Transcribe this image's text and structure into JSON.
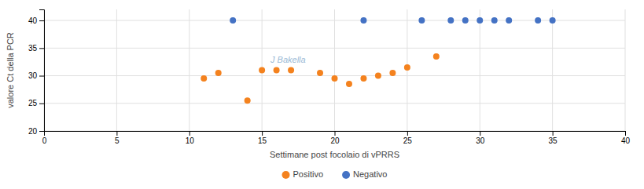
{
  "chart_data": {
    "type": "scatter",
    "xlabel": "Settimane post focolaio di vPRRS",
    "ylabel": "valore Ct della PCR",
    "annotations": [
      {
        "text": "J Bakella"
      }
    ],
    "series": [
      {
        "name": "Positivo",
        "color": "#f4821e",
        "x": [
          11,
          12,
          14,
          15,
          16,
          17,
          19,
          20,
          21,
          22,
          23,
          24,
          25,
          27
        ],
        "values": [
          29.5,
          30.5,
          25.5,
          31,
          31,
          31,
          30.5,
          29.5,
          28.5,
          29.5,
          30,
          30.5,
          31.5,
          33.5
        ]
      },
      {
        "name": "Negativo",
        "color": "#4472c4",
        "x": [
          13,
          22,
          26,
          28,
          29,
          30,
          31,
          32,
          34,
          35
        ],
        "values": [
          40,
          40,
          40,
          40,
          40,
          40,
          40,
          40,
          40,
          40
        ]
      }
    ],
    "xlim": [
      0,
      40
    ],
    "ylim": [
      20,
      42
    ],
    "xticks": [
      0,
      5,
      10,
      15,
      20,
      25,
      30,
      35,
      40
    ],
    "yticks": [
      20,
      25,
      30,
      35,
      40
    ],
    "grid": true,
    "legend": "bottom"
  }
}
